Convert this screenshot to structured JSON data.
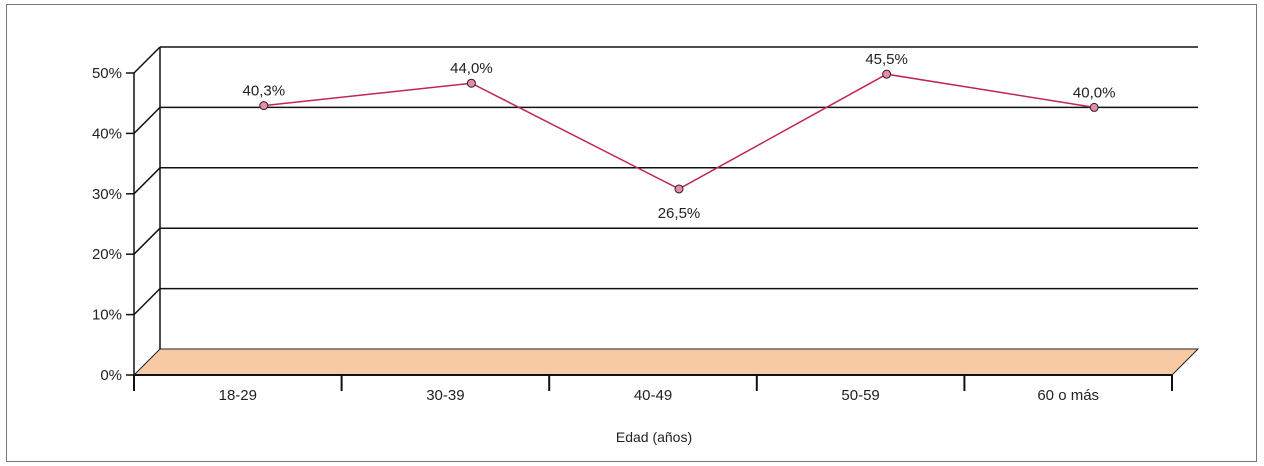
{
  "chart_data": {
    "type": "line",
    "title": "",
    "xlabel": "Edad (años)",
    "ylabel": "",
    "categories": [
      "18-29",
      "30-39",
      "40-49",
      "50-59",
      "60 o más"
    ],
    "series": [
      {
        "values": [
          40.3,
          44.0,
          26.5,
          45.5,
          40.0
        ]
      }
    ],
    "data_labels": [
      "40,3%",
      "44,0%",
      "26,5%",
      "45,5%",
      "40,0%"
    ],
    "y_ticks": [
      "0%",
      "10%",
      "20%",
      "30%",
      "40%",
      "50%"
    ],
    "ylim": [
      0,
      50
    ],
    "grid": true,
    "legend": "none",
    "colors": {
      "line": "#c0245a",
      "marker_fill": "#e88aa8",
      "floor": "#f7caa4",
      "grid": "#111111"
    }
  }
}
